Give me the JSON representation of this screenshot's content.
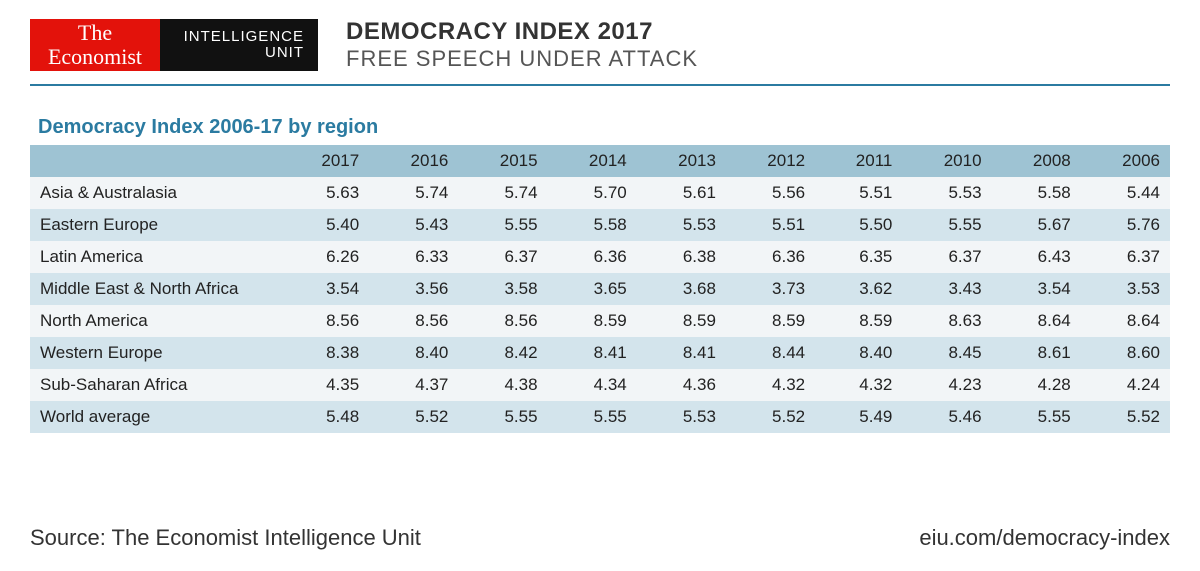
{
  "brand": {
    "left_line1": "The",
    "left_line2": "Economist",
    "right_line1": "INTELLIGENCE",
    "right_line2": "UNIT"
  },
  "header": {
    "title": "DEMOCRACY INDEX 2017",
    "subtitle": "FREE SPEECH UNDER ATTACK"
  },
  "table": {
    "title": "Democracy Index 2006-17 by region",
    "columns": [
      "",
      "2017",
      "2016",
      "2015",
      "2014",
      "2013",
      "2012",
      "2011",
      "2010",
      "2008",
      "2006"
    ],
    "rows": [
      [
        "Asia & Australasia",
        "5.63",
        "5.74",
        "5.74",
        "5.70",
        "5.61",
        "5.56",
        "5.51",
        "5.53",
        "5.58",
        "5.44"
      ],
      [
        "Eastern Europe",
        "5.40",
        "5.43",
        "5.55",
        "5.58",
        "5.53",
        "5.51",
        "5.50",
        "5.55",
        "5.67",
        "5.76"
      ],
      [
        "Latin America",
        "6.26",
        "6.33",
        "6.37",
        "6.36",
        "6.38",
        "6.36",
        "6.35",
        "6.37",
        "6.43",
        "6.37"
      ],
      [
        "Middle East & North Africa",
        "3.54",
        "3.56",
        "3.58",
        "3.65",
        "3.68",
        "3.73",
        "3.62",
        "3.43",
        "3.54",
        "3.53"
      ],
      [
        "North America",
        "8.56",
        "8.56",
        "8.56",
        "8.59",
        "8.59",
        "8.59",
        "8.59",
        "8.63",
        "8.64",
        "8.64"
      ],
      [
        "Western Europe",
        "8.38",
        "8.40",
        "8.42",
        "8.41",
        "8.41",
        "8.44",
        "8.40",
        "8.45",
        "8.61",
        "8.60"
      ],
      [
        "Sub-Saharan Africa",
        "4.35",
        "4.37",
        "4.38",
        "4.34",
        "4.36",
        "4.32",
        "4.32",
        "4.23",
        "4.28",
        "4.24"
      ],
      [
        "World average",
        "5.48",
        "5.52",
        "5.55",
        "5.55",
        "5.53",
        "5.52",
        "5.49",
        "5.46",
        "5.55",
        "5.52"
      ]
    ],
    "header_bg": "#9ec3d3",
    "row_odd_bg": "#f2f5f7",
    "row_even_bg": "#d3e4ec",
    "title_color": "#2b7ba1"
  },
  "footer": {
    "source": "Source: The Economist Intelligence Unit",
    "url": "eiu.com/democracy-index"
  }
}
